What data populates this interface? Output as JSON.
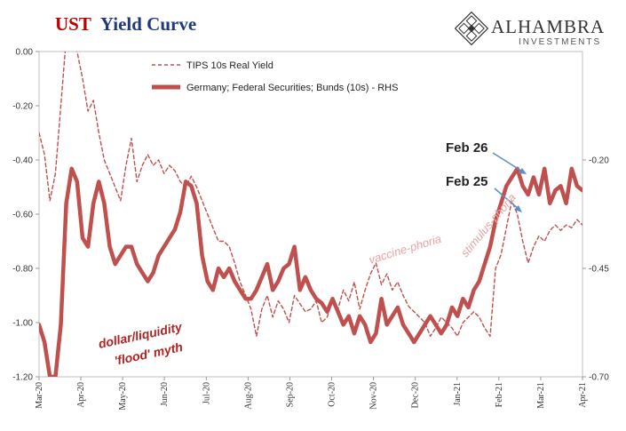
{
  "title": {
    "part1": "UST",
    "part2": "Yield Curve"
  },
  "logo": {
    "name": "ALHAMBRA",
    "sub": "INVESTMENTS"
  },
  "colors": {
    "series": "#c0504d",
    "title_red": "#c00000",
    "title_blue": "#1f3a7a",
    "annotation_arrow": "#5b8dc9"
  },
  "chart_data": {
    "type": "line",
    "x_dates": [
      "Mar-20",
      "Apr-20",
      "May-20",
      "Jun-20",
      "Jul-20",
      "Aug-20",
      "Sep-20",
      "Oct-20",
      "Nov-20",
      "Dec-20",
      "Jan-21",
      "Feb-21",
      "Mar-21",
      "Apr-21"
    ],
    "y_left": {
      "ticks": [
        "0.00",
        "-0.20",
        "-0.40",
        "-0.60",
        "-0.80",
        "-1.00",
        "-1.20"
      ],
      "lim": [
        -1.2,
        0.0
      ]
    },
    "y_right": {
      "ticks": [
        "-0.20",
        "-0.45",
        "-0.70"
      ],
      "lim": [
        -0.7,
        0.05
      ]
    },
    "grid": false,
    "legend_position": "top-left",
    "series": [
      {
        "name": "TIPS 10s Real Yield",
        "axis": "left",
        "style": "dashed",
        "points": [
          [
            0,
            -0.3
          ],
          [
            1,
            -0.38
          ],
          [
            2,
            -0.55
          ],
          [
            3,
            -0.45
          ],
          [
            4,
            -0.2
          ],
          [
            5,
            0.05
          ],
          [
            6,
            0.05
          ],
          [
            7,
            0.0
          ],
          [
            8,
            -0.1
          ],
          [
            9,
            -0.22
          ],
          [
            10,
            -0.18
          ],
          [
            11,
            -0.3
          ],
          [
            12,
            -0.4
          ],
          [
            13,
            -0.45
          ],
          [
            14,
            -0.5
          ],
          [
            15,
            -0.55
          ],
          [
            16,
            -0.42
          ],
          [
            17,
            -0.32
          ],
          [
            18,
            -0.48
          ],
          [
            19,
            -0.42
          ],
          [
            20,
            -0.38
          ],
          [
            21,
            -0.42
          ],
          [
            22,
            -0.4
          ],
          [
            23,
            -0.45
          ],
          [
            24,
            -0.42
          ],
          [
            25,
            -0.44
          ],
          [
            26,
            -0.48
          ],
          [
            27,
            -0.5
          ],
          [
            28,
            -0.46
          ],
          [
            29,
            -0.5
          ],
          [
            30,
            -0.55
          ],
          [
            31,
            -0.6
          ],
          [
            32,
            -0.65
          ],
          [
            33,
            -0.7
          ],
          [
            34,
            -0.7
          ],
          [
            35,
            -0.72
          ],
          [
            36,
            -0.78
          ],
          [
            37,
            -0.85
          ],
          [
            38,
            -0.9
          ],
          [
            39,
            -0.95
          ],
          [
            40,
            -1.05
          ],
          [
            41,
            -0.95
          ],
          [
            42,
            -0.9
          ],
          [
            43,
            -0.98
          ],
          [
            44,
            -0.92
          ],
          [
            45,
            -0.95
          ],
          [
            46,
            -1.0
          ],
          [
            47,
            -0.9
          ],
          [
            48,
            -0.93
          ],
          [
            49,
            -0.96
          ],
          [
            50,
            -0.95
          ],
          [
            51,
            -0.92
          ],
          [
            52,
            -1.0
          ],
          [
            53,
            -0.98
          ],
          [
            54,
            -0.92
          ],
          [
            55,
            -0.95
          ],
          [
            56,
            -0.88
          ],
          [
            57,
            -0.92
          ],
          [
            58,
            -0.85
          ],
          [
            59,
            -0.95
          ],
          [
            60,
            -0.88
          ],
          [
            61,
            -0.82
          ],
          [
            62,
            -0.78
          ],
          [
            63,
            -0.86
          ],
          [
            64,
            -0.82
          ],
          [
            65,
            -0.88
          ],
          [
            66,
            -0.85
          ],
          [
            67,
            -0.9
          ],
          [
            68,
            -0.94
          ],
          [
            69,
            -0.96
          ],
          [
            70,
            -0.98
          ],
          [
            71,
            -1.0
          ],
          [
            72,
            -1.05
          ],
          [
            73,
            -1.02
          ],
          [
            74,
            -0.98
          ],
          [
            75,
            -1.0
          ],
          [
            76,
            -1.02
          ],
          [
            77,
            -1.05
          ],
          [
            78,
            -1.0
          ],
          [
            79,
            -0.98
          ],
          [
            80,
            -0.96
          ],
          [
            81,
            -0.98
          ],
          [
            82,
            -1.02
          ],
          [
            83,
            -1.05
          ],
          [
            84,
            -0.8
          ],
          [
            85,
            -0.75
          ],
          [
            86,
            -0.65
          ],
          [
            87,
            -0.55
          ],
          [
            88,
            -0.6
          ],
          [
            89,
            -0.7
          ],
          [
            90,
            -0.78
          ],
          [
            91,
            -0.72
          ],
          [
            92,
            -0.68
          ],
          [
            93,
            -0.7
          ],
          [
            94,
            -0.66
          ],
          [
            95,
            -0.64
          ],
          [
            96,
            -0.66
          ],
          [
            97,
            -0.64
          ],
          [
            98,
            -0.65
          ],
          [
            99,
            -0.62
          ],
          [
            100,
            -0.64
          ]
        ]
      },
      {
        "name": "Germany; Federal Securities; Bunds (10s) - RHS",
        "axis": "right",
        "style": "solid",
        "points": [
          [
            0,
            -0.58
          ],
          [
            1,
            -0.62
          ],
          [
            2,
            -0.7
          ],
          [
            3,
            -0.7
          ],
          [
            4,
            -0.58
          ],
          [
            5,
            -0.3
          ],
          [
            6,
            -0.22
          ],
          [
            7,
            -0.25
          ],
          [
            8,
            -0.38
          ],
          [
            9,
            -0.4
          ],
          [
            10,
            -0.3
          ],
          [
            11,
            -0.25
          ],
          [
            12,
            -0.3
          ],
          [
            13,
            -0.4
          ],
          [
            14,
            -0.44
          ],
          [
            15,
            -0.42
          ],
          [
            16,
            -0.4
          ],
          [
            17,
            -0.4
          ],
          [
            18,
            -0.44
          ],
          [
            19,
            -0.46
          ],
          [
            20,
            -0.48
          ],
          [
            21,
            -0.46
          ],
          [
            22,
            -0.42
          ],
          [
            23,
            -0.4
          ],
          [
            24,
            -0.38
          ],
          [
            25,
            -0.36
          ],
          [
            26,
            -0.32
          ],
          [
            27,
            -0.25
          ],
          [
            28,
            -0.26
          ],
          [
            29,
            -0.3
          ],
          [
            30,
            -0.42
          ],
          [
            31,
            -0.48
          ],
          [
            32,
            -0.5
          ],
          [
            33,
            -0.45
          ],
          [
            34,
            -0.47
          ],
          [
            35,
            -0.45
          ],
          [
            36,
            -0.48
          ],
          [
            37,
            -0.5
          ],
          [
            38,
            -0.52
          ],
          [
            39,
            -0.52
          ],
          [
            40,
            -0.5
          ],
          [
            41,
            -0.47
          ],
          [
            42,
            -0.44
          ],
          [
            43,
            -0.5
          ],
          [
            44,
            -0.48
          ],
          [
            45,
            -0.45
          ],
          [
            46,
            -0.44
          ],
          [
            47,
            -0.4
          ],
          [
            48,
            -0.5
          ],
          [
            49,
            -0.47
          ],
          [
            50,
            -0.5
          ],
          [
            51,
            -0.52
          ],
          [
            52,
            -0.53
          ],
          [
            53,
            -0.55
          ],
          [
            54,
            -0.52
          ],
          [
            55,
            -0.55
          ],
          [
            56,
            -0.58
          ],
          [
            57,
            -0.56
          ],
          [
            58,
            -0.6
          ],
          [
            59,
            -0.56
          ],
          [
            60,
            -0.58
          ],
          [
            61,
            -0.62
          ],
          [
            62,
            -0.6
          ],
          [
            63,
            -0.52
          ],
          [
            64,
            -0.58
          ],
          [
            65,
            -0.56
          ],
          [
            66,
            -0.54
          ],
          [
            67,
            -0.58
          ],
          [
            68,
            -0.6
          ],
          [
            69,
            -0.62
          ],
          [
            70,
            -0.6
          ],
          [
            71,
            -0.58
          ],
          [
            72,
            -0.56
          ],
          [
            73,
            -0.58
          ],
          [
            74,
            -0.6
          ],
          [
            75,
            -0.58
          ],
          [
            76,
            -0.54
          ],
          [
            77,
            -0.56
          ],
          [
            78,
            -0.52
          ],
          [
            79,
            -0.54
          ],
          [
            80,
            -0.5
          ],
          [
            81,
            -0.48
          ],
          [
            82,
            -0.44
          ],
          [
            83,
            -0.4
          ],
          [
            84,
            -0.34
          ],
          [
            85,
            -0.3
          ],
          [
            86,
            -0.26
          ],
          [
            87,
            -0.24
          ],
          [
            88,
            -0.22
          ],
          [
            89,
            -0.26
          ],
          [
            90,
            -0.28
          ],
          [
            91,
            -0.24
          ],
          [
            92,
            -0.28
          ],
          [
            93,
            -0.22
          ],
          [
            94,
            -0.3
          ],
          [
            95,
            -0.27
          ],
          [
            96,
            -0.26
          ],
          [
            97,
            -0.3
          ],
          [
            98,
            -0.22
          ],
          [
            99,
            -0.26
          ],
          [
            100,
            -0.27
          ]
        ]
      }
    ],
    "annotations": [
      {
        "id": "feb26",
        "text": "Feb 26"
      },
      {
        "id": "feb25",
        "text": "Feb 25"
      },
      {
        "id": "vaccine",
        "text": "vaccine-phoria"
      },
      {
        "id": "stimulus",
        "text": "stimulus-phoria"
      },
      {
        "id": "dollar1",
        "text": "dollar/liquidity"
      },
      {
        "id": "dollar2",
        "text": "'flood' myth"
      }
    ]
  }
}
